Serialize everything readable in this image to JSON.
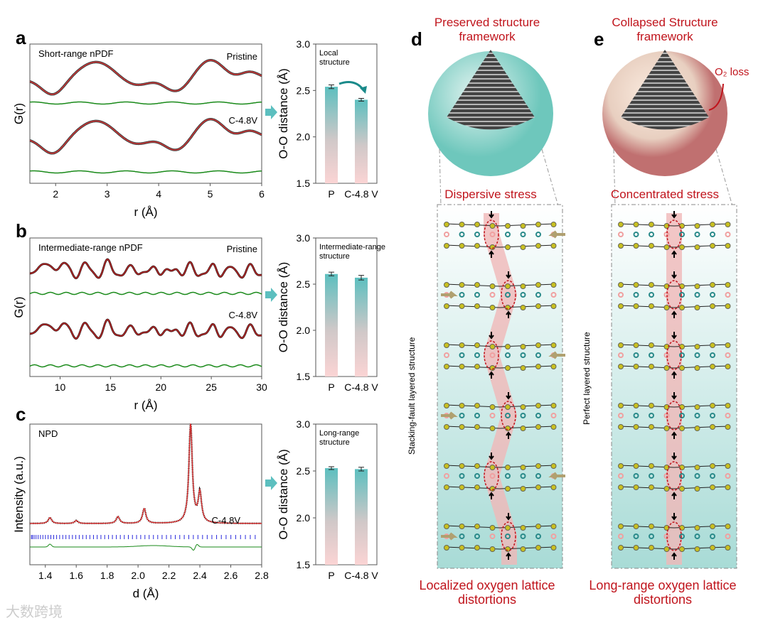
{
  "panels": {
    "a": "a",
    "b": "b",
    "c": "c",
    "d": "d",
    "e": "e"
  },
  "watermark": "大数跨境",
  "chart_data": [
    {
      "type": "line",
      "id": "a",
      "title": "Short-range nPDF",
      "xlabel": "r (Å)",
      "ylabel": "G(r)",
      "xlim": [
        1.5,
        6
      ],
      "xticks": [
        "2",
        "3",
        "4",
        "5",
        "6"
      ],
      "series": [
        {
          "name": "Pristine",
          "label": "Pristine"
        },
        {
          "name": "C-4.8V",
          "label": "C-4.8V"
        }
      ],
      "peaks_r": [
        1.95,
        2.8,
        3.5,
        4.0,
        5.0,
        5.7
      ]
    },
    {
      "type": "bar",
      "id": "a-bar",
      "ylabel": "O-O distance (Å)",
      "annotation": "Local structure",
      "categories": [
        "P",
        "C-4.8 V"
      ],
      "values": [
        2.54,
        2.4
      ],
      "errors": [
        0.02,
        0.015
      ],
      "ylim": [
        1.5,
        3.0
      ],
      "yticks": [
        "1.5",
        "2.0",
        "2.5",
        "3.0"
      ]
    },
    {
      "type": "line",
      "id": "b",
      "title": "Intermediate-range nPDF",
      "xlabel": "r (Å)",
      "ylabel": "G(r)",
      "xlim": [
        7,
        30
      ],
      "xticks": [
        "10",
        "15",
        "20",
        "25",
        "30"
      ],
      "series": [
        {
          "name": "Pristine",
          "label": "Pristine"
        },
        {
          "name": "C-4.8V",
          "label": "C-4.8V"
        }
      ]
    },
    {
      "type": "bar",
      "id": "b-bar",
      "ylabel": "O-O distance (Å)",
      "annotation": "Intermediate-range structure",
      "categories": [
        "P",
        "C-4.8 V"
      ],
      "values": [
        2.61,
        2.57
      ],
      "errors": [
        0.02,
        0.025
      ],
      "ylim": [
        1.5,
        3.0
      ],
      "yticks": [
        "1.5",
        "2.0",
        "2.5",
        "3.0"
      ]
    },
    {
      "type": "line",
      "id": "c",
      "title": "NPD",
      "xlabel": "d (Å)",
      "ylabel": "Intensity (a.u.)",
      "xlim": [
        1.3,
        2.8
      ],
      "xticks": [
        "1.4",
        "1.6",
        "1.8",
        "2.0",
        "2.2",
        "2.4",
        "2.6",
        "2.8"
      ],
      "series": [
        {
          "name": "C-4.8V",
          "label": "C-4.8V"
        }
      ],
      "peaks": [
        {
          "d": 1.43,
          "h": 0.06
        },
        {
          "d": 1.6,
          "h": 0.03
        },
        {
          "d": 1.87,
          "h": 0.07
        },
        {
          "d": 2.04,
          "h": 0.15
        },
        {
          "d": 2.34,
          "h": 1.0
        },
        {
          "d": 2.4,
          "h": 0.3
        }
      ]
    },
    {
      "type": "bar",
      "id": "c-bar",
      "ylabel": "O-O distance (Å)",
      "annotation": "Long-range structure",
      "categories": [
        "P",
        "C-4.8 V"
      ],
      "values": [
        2.53,
        2.52
      ],
      "errors": [
        0.015,
        0.02
      ],
      "ylim": [
        1.5,
        3.0
      ],
      "yticks": [
        "1.5",
        "2.0",
        "2.5",
        "3.0"
      ]
    }
  ],
  "d": {
    "title": "Preserved structure framework",
    "stress": "Dispersive stress",
    "side": "Stacking-fault layered structure",
    "caption": "Localized oxygen lattice distortions"
  },
  "e": {
    "title": "Collapsed Structure framework",
    "stress": "Concentrated stress",
    "side": "Perfect layered structure",
    "caption": "Long-range oxygen lattice distortions",
    "o2": "O₂ loss"
  },
  "colors": {
    "teal": "#5cbfbf",
    "pink": "#f7c9c9",
    "red": "#c0141c",
    "green": "#1a8a1a",
    "fitRed": "#e03030"
  }
}
